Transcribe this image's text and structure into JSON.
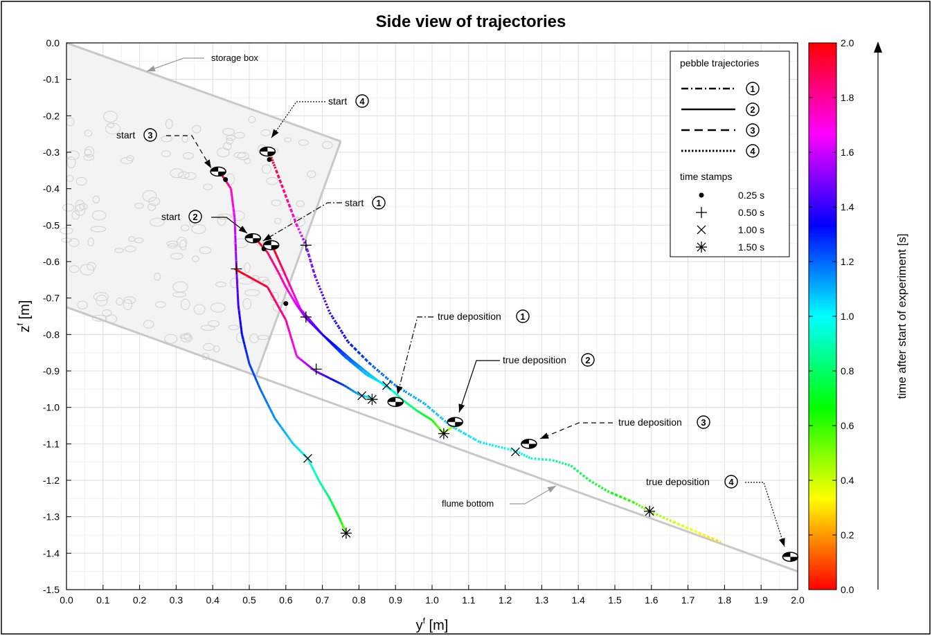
{
  "chart_data": {
    "type": "line",
    "title": "Side view of trajectories",
    "xlabel": "y",
    "xlabel_sup": "f",
    "xlabel_unit": " [m]",
    "ylabel": "z",
    "ylabel_sup": "f",
    "ylabel_unit": " [m]",
    "xlim": [
      0,
      2.0
    ],
    "ylim": [
      -1.5,
      0
    ],
    "xticks": [
      0.0,
      0.1,
      0.2,
      0.3,
      0.4,
      0.5,
      0.6,
      0.7,
      0.8,
      0.9,
      1.0,
      1.1,
      1.2,
      1.3,
      1.4,
      1.5,
      1.6,
      1.7,
      1.8,
      1.9,
      2.0
    ],
    "yticks": [
      0.0,
      -0.1,
      -0.2,
      -0.3,
      -0.4,
      -0.5,
      -0.6,
      -0.7,
      -0.8,
      -0.9,
      -1.0,
      -1.1,
      -1.2,
      -1.3,
      -1.4,
      -1.5
    ],
    "grid": true,
    "colorbar": {
      "label": "time after start of experiment [s]",
      "range": [
        0,
        2.0
      ],
      "ticks": [
        0.0,
        0.2,
        0.4,
        0.6,
        0.8,
        1.0,
        1.2,
        1.4,
        1.6,
        1.8,
        2.0
      ],
      "colormap": "hsv"
    },
    "legend": {
      "placement": "top-right",
      "title1": "pebble trajectories",
      "trajectories": [
        {
          "label": "1",
          "style": "dashdot"
        },
        {
          "label": "2",
          "style": "solid"
        },
        {
          "label": "3",
          "style": "dashed"
        },
        {
          "label": "4",
          "style": "dotted"
        }
      ],
      "title2": "time stamps",
      "stamps": [
        {
          "symbol": "dot",
          "label": "0.25 s"
        },
        {
          "symbol": "plus",
          "label": "0.50 s"
        },
        {
          "symbol": "cross",
          "label": "1.00 s"
        },
        {
          "symbol": "star",
          "label": "1.50 s"
        }
      ]
    },
    "storage_box": [
      [
        0.0,
        0.0
      ],
      [
        0.75,
        -0.27
      ],
      [
        0.52,
        -0.91
      ],
      [
        0.0,
        -0.725
      ]
    ],
    "flume_bottom": [
      [
        0.0,
        -0.725
      ],
      [
        2.0,
        -1.45
      ]
    ],
    "series": [
      {
        "name": "1",
        "style": "dashdot",
        "points": [
          [
            0.56,
            -0.55,
            0.0
          ],
          [
            0.6,
            -0.64,
            0.18
          ],
          [
            0.64,
            -0.73,
            0.38
          ],
          [
            0.7,
            -0.8,
            0.6
          ],
          [
            0.78,
            -0.87,
            0.8
          ],
          [
            0.83,
            -0.91,
            0.92
          ],
          [
            0.87,
            -0.94,
            1.0
          ],
          [
            0.9,
            -0.96,
            1.06
          ]
        ]
      },
      {
        "name": "2",
        "style": "solid",
        "points": [
          [
            0.52,
            -0.54,
            0.0
          ],
          [
            0.55,
            -0.575,
            0.12
          ],
          [
            0.58,
            -0.63,
            0.2
          ],
          [
            0.6,
            -0.67,
            0.25
          ],
          [
            0.63,
            -0.72,
            0.38
          ],
          [
            0.655,
            -0.755,
            0.5
          ],
          [
            0.7,
            -0.8,
            0.62
          ],
          [
            0.76,
            -0.86,
            0.78
          ],
          [
            0.82,
            -0.91,
            0.92
          ],
          [
            0.875,
            -0.94,
            1.0
          ],
          [
            0.92,
            -0.98,
            1.12
          ],
          [
            0.96,
            -1.01,
            1.22
          ],
          [
            1.0,
            -1.035,
            1.35
          ],
          [
            1.03,
            -1.07,
            1.5
          ],
          [
            1.07,
            -1.045,
            1.56
          ]
        ]
      },
      {
        "name": "3",
        "style": "dashed",
        "points": [
          [
            0.42,
            -0.355,
            0.0
          ],
          [
            0.45,
            -0.4,
            0.25
          ],
          [
            0.46,
            -0.48,
            0.36
          ],
          [
            0.465,
            -0.62,
            0.5
          ],
          [
            0.47,
            -0.72,
            0.6
          ],
          [
            0.48,
            -0.8,
            0.68
          ],
          [
            0.5,
            -0.88,
            0.74
          ],
          [
            0.53,
            -0.95,
            0.8
          ],
          [
            0.57,
            -1.03,
            0.86
          ],
          [
            0.62,
            -1.1,
            0.94
          ],
          [
            0.66,
            -1.14,
            1.0
          ],
          [
            0.69,
            -1.2,
            1.1
          ],
          [
            0.72,
            -1.25,
            1.2
          ],
          [
            0.745,
            -1.3,
            1.3
          ],
          [
            0.765,
            -1.345,
            1.5
          ]
        ]
      },
      {
        "name": "3",
        "style": "dashed",
        "points": [
          [
            0.46,
            -0.62,
            0.0
          ],
          [
            0.55,
            -0.67,
            0.1
          ],
          [
            0.6,
            -0.76,
            0.2
          ],
          [
            0.63,
            -0.86,
            0.35
          ],
          [
            0.68,
            -0.9,
            0.5
          ],
          [
            0.72,
            -0.92,
            0.62
          ],
          [
            0.76,
            -0.94,
            0.75
          ],
          [
            0.8,
            -0.965,
            0.9
          ],
          [
            0.835,
            -0.975,
            1.0
          ]
        ]
      },
      {
        "name": "4",
        "style": "dotted",
        "points": [
          [
            0.555,
            -0.3,
            0.0
          ],
          [
            0.57,
            -0.34,
            0.08
          ],
          [
            0.6,
            -0.42,
            0.18
          ],
          [
            0.63,
            -0.5,
            0.28
          ],
          [
            0.655,
            -0.555,
            0.5
          ],
          [
            0.68,
            -0.64,
            0.52
          ],
          [
            0.72,
            -0.74,
            0.6
          ],
          [
            0.77,
            -0.82,
            0.68
          ],
          [
            0.83,
            -0.88,
            0.76
          ],
          [
            0.9,
            -0.94,
            0.84
          ],
          [
            0.98,
            -0.99,
            0.9
          ],
          [
            1.05,
            -1.05,
            0.94
          ],
          [
            1.13,
            -1.095,
            0.97
          ],
          [
            1.23,
            -1.12,
            1.0
          ],
          [
            1.27,
            -1.14,
            1.08
          ],
          [
            1.33,
            -1.145,
            1.12
          ],
          [
            1.38,
            -1.16,
            1.2
          ],
          [
            1.43,
            -1.2,
            1.26
          ],
          [
            1.48,
            -1.23,
            1.3
          ],
          [
            1.55,
            -1.26,
            1.4
          ],
          [
            1.595,
            -1.285,
            1.5
          ],
          [
            1.65,
            -1.31,
            1.58
          ],
          [
            1.72,
            -1.34,
            1.66
          ],
          [
            1.79,
            -1.37,
            1.72
          ]
        ]
      }
    ],
    "stamps": [
      {
        "sym": "dot",
        "x": 0.435,
        "y": -0.375
      },
      {
        "sym": "dot",
        "x": 0.54,
        "y": -0.565
      },
      {
        "sym": "dot",
        "x": 0.6,
        "y": -0.715
      },
      {
        "sym": "dot",
        "x": 0.555,
        "y": -0.32
      },
      {
        "sym": "plus",
        "x": 0.465,
        "y": -0.62
      },
      {
        "sym": "plus",
        "x": 0.655,
        "y": -0.555
      },
      {
        "sym": "plus",
        "x": 0.655,
        "y": -0.752
      },
      {
        "sym": "plus",
        "x": 0.683,
        "y": -0.895
      },
      {
        "sym": "cross",
        "x": 0.66,
        "y": -1.14
      },
      {
        "sym": "cross",
        "x": 0.808,
        "y": -0.968
      },
      {
        "sym": "cross",
        "x": 0.876,
        "y": -0.94
      },
      {
        "sym": "cross",
        "x": 1.228,
        "y": -1.122
      },
      {
        "sym": "star",
        "x": 0.765,
        "y": -1.345
      },
      {
        "sym": "star",
        "x": 0.836,
        "y": -0.978
      },
      {
        "sym": "star",
        "x": 1.032,
        "y": -1.072
      },
      {
        "sym": "star",
        "x": 1.595,
        "y": -1.285
      }
    ],
    "markers": [
      {
        "x": 0.415,
        "y": -0.353
      },
      {
        "x": 0.51,
        "y": -0.536
      },
      {
        "x": 0.56,
        "y": -0.555
      },
      {
        "x": 0.55,
        "y": -0.298
      },
      {
        "x": 0.9,
        "y": -0.985
      },
      {
        "x": 1.063,
        "y": -1.04
      },
      {
        "x": 1.265,
        "y": -1.1
      },
      {
        "x": 1.98,
        "y": -1.41
      }
    ],
    "annotations": {
      "storage_box": "storage box",
      "flume_bottom": "flume bottom",
      "start_word": "start",
      "true_deposition_word": "true deposition",
      "circled": [
        "1",
        "2",
        "3",
        "4"
      ]
    }
  }
}
